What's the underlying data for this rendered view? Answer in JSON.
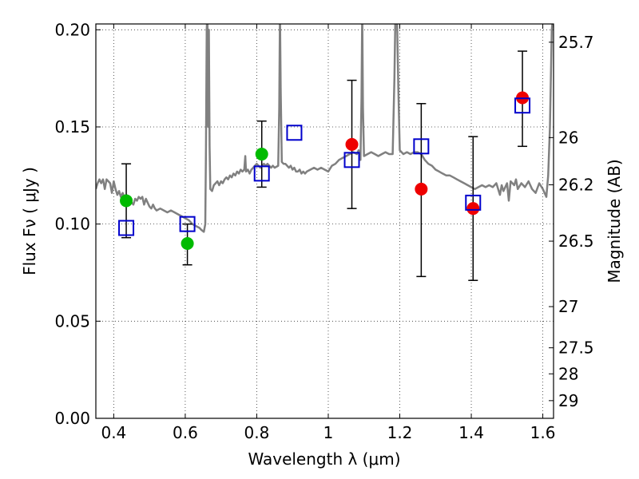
{
  "chart_data": {
    "type": "scatter",
    "xlabel": "Wavelength  λ (μm)",
    "ylabel": "Flux  Fν  ( μJy )",
    "ylabel_right": "Magnitude (AB)",
    "xlim": [
      0.35,
      1.63
    ],
    "ylim": [
      0.0,
      0.203
    ],
    "grid": true,
    "x_ticks": [
      0.4,
      0.6,
      0.8,
      1.0,
      1.2,
      1.4,
      1.6
    ],
    "x_tick_labels": [
      "0.4",
      "0.6",
      "0.8",
      "1",
      "1.2",
      "1.4",
      "1.6"
    ],
    "y_ticks": [
      0.0,
      0.05,
      0.1,
      0.15,
      0.2
    ],
    "y_tick_labels": [
      "0.00",
      "0.05",
      "0.10",
      "0.15",
      "0.20"
    ],
    "right_ticks": [
      {
        "label": "25.7",
        "flux": 0.1936
      },
      {
        "label": "26",
        "flux": 0.1445
      },
      {
        "label": "26.2",
        "flux": 0.1202
      },
      {
        "label": "26.5",
        "flux": 0.0912
      },
      {
        "label": "27",
        "flux": 0.0575
      },
      {
        "label": "27.5",
        "flux": 0.0363
      },
      {
        "label": "28",
        "flux": 0.0229
      },
      {
        "label": "29",
        "flux": 0.0091
      }
    ],
    "series": [
      {
        "marker": "circle",
        "color": "#00bb00",
        "points": [
          {
            "x": 0.435,
            "y": 0.112
          },
          {
            "x": 0.606,
            "y": 0.09
          },
          {
            "x": 0.814,
            "y": 0.136
          }
        ]
      },
      {
        "marker": "circle",
        "color": "#ee0000",
        "points": [
          {
            "x": 1.066,
            "y": 0.141
          },
          {
            "x": 1.26,
            "y": 0.118
          },
          {
            "x": 1.405,
            "y": 0.108
          },
          {
            "x": 1.543,
            "y": 0.165
          }
        ]
      },
      {
        "marker": "square-open",
        "color": "#0000cc",
        "points": [
          {
            "x": 0.435,
            "y": 0.098
          },
          {
            "x": 0.606,
            "y": 0.1
          },
          {
            "x": 0.814,
            "y": 0.126
          },
          {
            "x": 0.905,
            "y": 0.147
          },
          {
            "x": 1.066,
            "y": 0.133
          },
          {
            "x": 1.26,
            "y": 0.14
          },
          {
            "x": 1.405,
            "y": 0.111
          },
          {
            "x": 1.543,
            "y": 0.161
          }
        ]
      }
    ],
    "error_bars": [
      {
        "x": 0.435,
        "low": 0.093,
        "high": 0.131
      },
      {
        "x": 0.606,
        "low": 0.079,
        "high": 0.1
      },
      {
        "x": 0.814,
        "low": 0.119,
        "high": 0.153
      },
      {
        "x": 1.066,
        "low": 0.108,
        "high": 0.174
      },
      {
        "x": 1.26,
        "low": 0.073,
        "high": 0.162
      },
      {
        "x": 1.405,
        "low": 0.071,
        "high": 0.145
      },
      {
        "x": 1.543,
        "low": 0.14,
        "high": 0.189
      }
    ],
    "spectrum": {
      "color": "#808080",
      "points": [
        [
          0.35,
          0.118
        ],
        [
          0.355,
          0.121
        ],
        [
          0.36,
          0.123
        ],
        [
          0.365,
          0.121
        ],
        [
          0.37,
          0.123
        ],
        [
          0.375,
          0.118
        ],
        [
          0.38,
          0.123
        ],
        [
          0.385,
          0.122
        ],
        [
          0.39,
          0.121
        ],
        [
          0.395,
          0.116
        ],
        [
          0.4,
          0.122
        ],
        [
          0.405,
          0.118
        ],
        [
          0.41,
          0.115
        ],
        [
          0.415,
          0.117
        ],
        [
          0.42,
          0.114
        ],
        [
          0.425,
          0.116
        ],
        [
          0.43,
          0.114
        ],
        [
          0.435,
          0.115
        ],
        [
          0.44,
          0.114
        ],
        [
          0.445,
          0.113
        ],
        [
          0.45,
          0.111
        ],
        [
          0.455,
          0.11
        ],
        [
          0.46,
          0.113
        ],
        [
          0.465,
          0.112
        ],
        [
          0.47,
          0.114
        ],
        [
          0.475,
          0.113
        ],
        [
          0.48,
          0.114
        ],
        [
          0.485,
          0.11
        ],
        [
          0.49,
          0.113
        ],
        [
          0.495,
          0.111
        ],
        [
          0.5,
          0.109
        ],
        [
          0.505,
          0.108
        ],
        [
          0.51,
          0.11
        ],
        [
          0.515,
          0.108
        ],
        [
          0.52,
          0.107
        ],
        [
          0.53,
          0.108
        ],
        [
          0.54,
          0.107
        ],
        [
          0.55,
          0.106
        ],
        [
          0.56,
          0.107
        ],
        [
          0.57,
          0.106
        ],
        [
          0.58,
          0.105
        ],
        [
          0.59,
          0.104
        ],
        [
          0.6,
          0.103
        ],
        [
          0.61,
          0.102
        ],
        [
          0.62,
          0.1
        ],
        [
          0.63,
          0.099
        ],
        [
          0.64,
          0.098
        ],
        [
          0.645,
          0.097
        ],
        [
          0.652,
          0.096
        ],
        [
          0.656,
          0.1
        ],
        [
          0.658,
          0.14
        ],
        [
          0.66,
          0.2
        ],
        [
          0.662,
          0.21
        ],
        [
          0.664,
          0.15
        ],
        [
          0.666,
          0.2
        ],
        [
          0.668,
          0.14
        ],
        [
          0.67,
          0.118
        ],
        [
          0.675,
          0.117
        ],
        [
          0.68,
          0.12
        ],
        [
          0.685,
          0.121
        ],
        [
          0.69,
          0.122
        ],
        [
          0.695,
          0.12
        ],
        [
          0.7,
          0.122
        ],
        [
          0.705,
          0.121
        ],
        [
          0.71,
          0.123
        ],
        [
          0.715,
          0.124
        ],
        [
          0.72,
          0.123
        ],
        [
          0.725,
          0.125
        ],
        [
          0.73,
          0.124
        ],
        [
          0.735,
          0.126
        ],
        [
          0.74,
          0.125
        ],
        [
          0.745,
          0.127
        ],
        [
          0.75,
          0.126
        ],
        [
          0.755,
          0.128
        ],
        [
          0.76,
          0.127
        ],
        [
          0.765,
          0.128
        ],
        [
          0.768,
          0.135
        ],
        [
          0.77,
          0.127
        ],
        [
          0.775,
          0.128
        ],
        [
          0.78,
          0.126
        ],
        [
          0.785,
          0.128
        ],
        [
          0.79,
          0.129
        ],
        [
          0.795,
          0.13
        ],
        [
          0.8,
          0.131
        ],
        [
          0.805,
          0.13
        ],
        [
          0.81,
          0.129
        ],
        [
          0.815,
          0.13
        ],
        [
          0.82,
          0.131
        ],
        [
          0.825,
          0.13
        ],
        [
          0.83,
          0.131
        ],
        [
          0.835,
          0.13
        ],
        [
          0.84,
          0.129
        ],
        [
          0.845,
          0.13
        ],
        [
          0.85,
          0.129
        ],
        [
          0.86,
          0.13
        ],
        [
          0.863,
          0.16
        ],
        [
          0.865,
          0.21
        ],
        [
          0.867,
          0.17
        ],
        [
          0.87,
          0.132
        ],
        [
          0.875,
          0.131
        ],
        [
          0.88,
          0.131
        ],
        [
          0.885,
          0.13
        ],
        [
          0.89,
          0.129
        ],
        [
          0.895,
          0.13
        ],
        [
          0.9,
          0.128
        ],
        [
          0.905,
          0.129
        ],
        [
          0.91,
          0.127
        ],
        [
          0.915,
          0.127
        ],
        [
          0.92,
          0.128
        ],
        [
          0.925,
          0.126
        ],
        [
          0.93,
          0.127
        ],
        [
          0.935,
          0.126
        ],
        [
          0.94,
          0.127
        ],
        [
          0.95,
          0.128
        ],
        [
          0.96,
          0.129
        ],
        [
          0.97,
          0.128
        ],
        [
          0.98,
          0.129
        ],
        [
          0.99,
          0.128
        ],
        [
          1.0,
          0.127
        ],
        [
          1.01,
          0.13
        ],
        [
          1.02,
          0.131
        ],
        [
          1.03,
          0.133
        ],
        [
          1.04,
          0.134
        ],
        [
          1.05,
          0.135
        ],
        [
          1.06,
          0.136
        ],
        [
          1.07,
          0.137
        ],
        [
          1.08,
          0.136
        ],
        [
          1.085,
          0.138
        ],
        [
          1.09,
          0.133
        ],
        [
          1.093,
          0.165
        ],
        [
          1.095,
          0.21
        ],
        [
          1.097,
          0.16
        ],
        [
          1.1,
          0.135
        ],
        [
          1.11,
          0.136
        ],
        [
          1.12,
          0.137
        ],
        [
          1.13,
          0.136
        ],
        [
          1.14,
          0.135
        ],
        [
          1.15,
          0.136
        ],
        [
          1.16,
          0.137
        ],
        [
          1.17,
          0.136
        ],
        [
          1.18,
          0.136
        ],
        [
          1.185,
          0.175
        ],
        [
          1.188,
          0.21
        ],
        [
          1.192,
          0.21
        ],
        [
          1.196,
          0.17
        ],
        [
          1.2,
          0.138
        ],
        [
          1.21,
          0.136
        ],
        [
          1.22,
          0.137
        ],
        [
          1.23,
          0.136
        ],
        [
          1.24,
          0.137
        ],
        [
          1.25,
          0.137
        ],
        [
          1.26,
          0.136
        ],
        [
          1.27,
          0.133
        ],
        [
          1.28,
          0.131
        ],
        [
          1.29,
          0.13
        ],
        [
          1.3,
          0.128
        ],
        [
          1.31,
          0.127
        ],
        [
          1.32,
          0.126
        ],
        [
          1.33,
          0.125
        ],
        [
          1.34,
          0.125
        ],
        [
          1.35,
          0.124
        ],
        [
          1.36,
          0.123
        ],
        [
          1.37,
          0.122
        ],
        [
          1.38,
          0.121
        ],
        [
          1.39,
          0.12
        ],
        [
          1.4,
          0.119
        ],
        [
          1.41,
          0.118
        ],
        [
          1.42,
          0.119
        ],
        [
          1.43,
          0.12
        ],
        [
          1.44,
          0.119
        ],
        [
          1.45,
          0.12
        ],
        [
          1.46,
          0.119
        ],
        [
          1.47,
          0.121
        ],
        [
          1.48,
          0.115
        ],
        [
          1.485,
          0.12
        ],
        [
          1.49,
          0.117
        ],
        [
          1.5,
          0.121
        ],
        [
          1.505,
          0.112
        ],
        [
          1.51,
          0.122
        ],
        [
          1.52,
          0.12
        ],
        [
          1.525,
          0.123
        ],
        [
          1.53,
          0.118
        ],
        [
          1.54,
          0.121
        ],
        [
          1.55,
          0.119
        ],
        [
          1.56,
          0.122
        ],
        [
          1.57,
          0.118
        ],
        [
          1.58,
          0.116
        ],
        [
          1.59,
          0.121
        ],
        [
          1.6,
          0.118
        ],
        [
          1.61,
          0.114
        ],
        [
          1.615,
          0.125
        ],
        [
          1.62,
          0.15
        ],
        [
          1.625,
          0.2
        ],
        [
          1.63,
          0.21
        ]
      ]
    }
  }
}
